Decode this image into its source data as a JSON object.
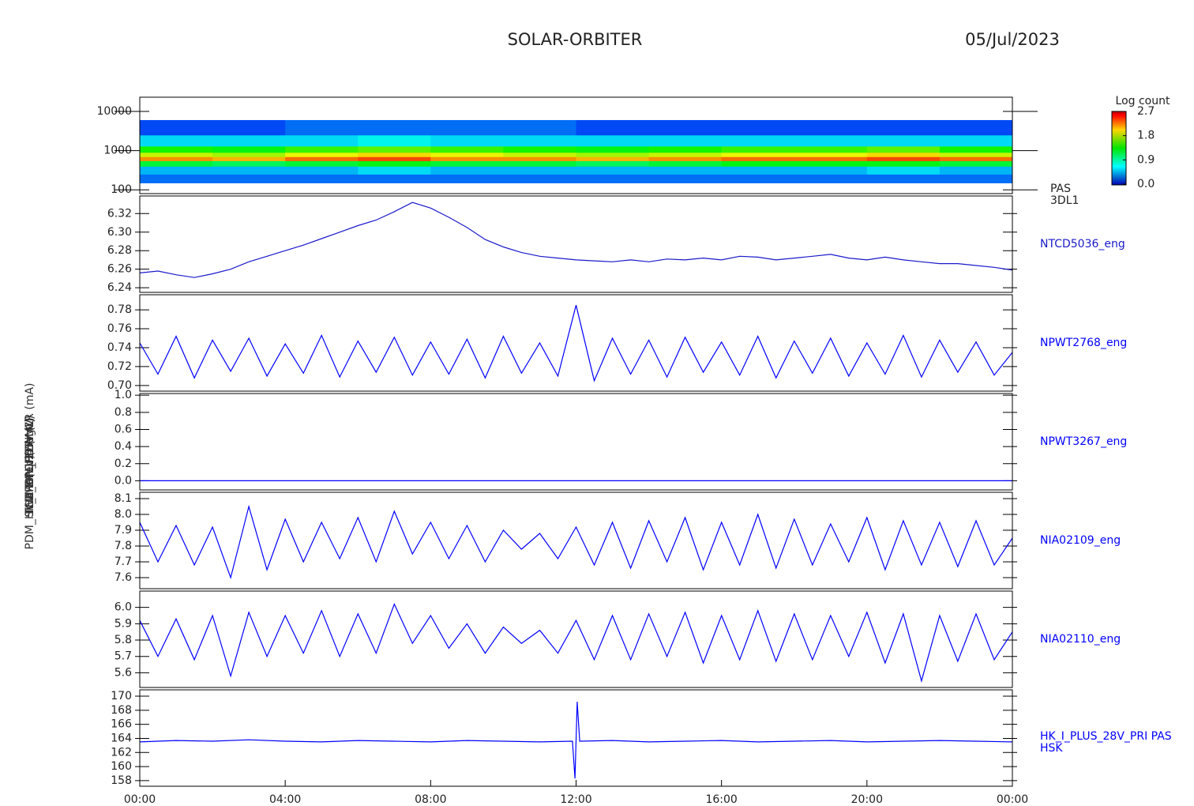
{
  "chart_data": [
    {
      "type": "heatmap",
      "title": "SOLAR-ORBITER",
      "date": "05/Jul/2023",
      "y_label": "(eV)",
      "right_label": [
        "PAS",
        "3DL1"
      ],
      "log_y": true,
      "xlim": [
        0,
        24
      ],
      "ylim": [
        80,
        23000
      ],
      "yticks": [
        100,
        1000,
        10000
      ],
      "x_bins": [
        0,
        2,
        4,
        6,
        8,
        10,
        12,
        14,
        16,
        18,
        20,
        22,
        24
      ],
      "y_bins": [
        150,
        250,
        400,
        550,
        700,
        900,
        1300,
        2500,
        6000
      ],
      "z": [
        [
          0.3,
          0.5,
          1.2,
          2.3,
          1.9,
          1.4,
          0.6,
          0.2
        ],
        [
          0.3,
          0.5,
          1.1,
          2.2,
          1.8,
          1.3,
          0.6,
          0.2
        ],
        [
          0.3,
          0.5,
          1.2,
          2.4,
          2.0,
          1.5,
          0.6,
          0.3
        ],
        [
          0.3,
          0.6,
          1.3,
          2.5,
          2.1,
          1.6,
          0.7,
          0.3
        ],
        [
          0.3,
          0.5,
          1.2,
          2.3,
          2.0,
          1.5,
          0.6,
          0.3
        ],
        [
          0.3,
          0.5,
          1.2,
          2.3,
          1.9,
          1.4,
          0.6,
          0.3
        ],
        [
          0.3,
          0.5,
          1.1,
          2.2,
          1.8,
          1.3,
          0.6,
          0.2
        ],
        [
          0.3,
          0.5,
          1.2,
          2.3,
          1.9,
          1.4,
          0.6,
          0.2
        ],
        [
          0.3,
          0.5,
          1.3,
          2.4,
          2.0,
          1.5,
          0.6,
          0.2
        ],
        [
          0.3,
          0.5,
          1.3,
          2.4,
          2.0,
          1.5,
          0.6,
          0.2
        ],
        [
          0.3,
          0.6,
          1.3,
          2.5,
          2.1,
          1.6,
          0.6,
          0.2
        ],
        [
          0.3,
          0.5,
          1.2,
          2.4,
          1.9,
          1.4,
          0.6,
          0.2
        ]
      ],
      "colorbar_title": "Log count",
      "zlim": [
        0,
        2.7
      ],
      "zticks": [
        {
          "value": 0,
          "label": "0.0"
        },
        0.9,
        1.8,
        2.7
      ]
    },
    {
      "type": "line",
      "y_label": "TCD Temp (DegC)",
      "right_label": [
        "NTCD5036_eng"
      ],
      "color": "#1a1acc",
      "xlim": [
        0,
        24
      ],
      "ylim": [
        6.235,
        6.339
      ],
      "yticks": [
        6.24,
        6.26,
        6.28,
        {
          "value": 6.3,
          "label": "6.30"
        },
        6.32
      ],
      "x": [
        0,
        0.5,
        1,
        1.5,
        2,
        2.5,
        3,
        3.5,
        4,
        4.5,
        5,
        5.5,
        6,
        6.5,
        7,
        7.5,
        8,
        8.5,
        9,
        9.5,
        10,
        10.5,
        11,
        11.5,
        12,
        12.5,
        13,
        13.5,
        14,
        14.5,
        15,
        15.5,
        16,
        16.5,
        17,
        17.5,
        18,
        18.5,
        19,
        19.5,
        20,
        20.5,
        21,
        21.5,
        22,
        22.5,
        23,
        23.5,
        24
      ],
      "values": [
        6.256,
        6.258,
        6.254,
        6.251,
        6.255,
        6.26,
        6.268,
        6.274,
        6.28,
        6.286,
        6.293,
        6.3,
        6.307,
        6.313,
        6.322,
        6.332,
        6.326,
        6.316,
        6.305,
        6.292,
        6.284,
        6.278,
        6.274,
        6.272,
        6.27,
        6.269,
        6.268,
        6.27,
        6.268,
        6.271,
        6.27,
        6.272,
        6.27,
        6.274,
        6.273,
        6.27,
        6.272,
        6.274,
        6.276,
        6.272,
        6.27,
        6.273,
        6.27,
        6.268,
        6.266,
        6.266,
        6.264,
        6.262,
        6.259
      ]
    },
    {
      "type": "line",
      "y_label": "SWA_DPU 1.5V (V)",
      "right_label": [
        "NPWT2768_eng"
      ],
      "color": "#0000ff",
      "xlim": [
        0,
        24
      ],
      "ylim": [
        0.694,
        0.796
      ],
      "yticks": [
        {
          "value": 0.7,
          "label": "0.70"
        },
        0.72,
        0.74,
        0.76,
        0.78
      ],
      "x": [
        0,
        0.5,
        1,
        1.5,
        2,
        2.5,
        3,
        3.5,
        4,
        4.5,
        5,
        5.5,
        6,
        6.5,
        7,
        7.5,
        8,
        8.5,
        9,
        9.5,
        10,
        10.5,
        11,
        11.5,
        12,
        12.5,
        13,
        13.5,
        14,
        14.5,
        15,
        15.5,
        16,
        16.5,
        17,
        17.5,
        18,
        18.5,
        19,
        19.5,
        20,
        20.5,
        21,
        21.5,
        22,
        22.5,
        23,
        23.5,
        24
      ],
      "values": [
        0.745,
        0.712,
        0.752,
        0.708,
        0.748,
        0.715,
        0.75,
        0.71,
        0.744,
        0.713,
        0.753,
        0.709,
        0.747,
        0.714,
        0.751,
        0.711,
        0.746,
        0.712,
        0.749,
        0.708,
        0.752,
        0.713,
        0.745,
        0.71,
        0.785,
        0.705,
        0.75,
        0.712,
        0.748,
        0.709,
        0.751,
        0.714,
        0.746,
        0.711,
        0.752,
        0.708,
        0.747,
        0.713,
        0.75,
        0.71,
        0.745,
        0.712,
        0.753,
        0.709,
        0.748,
        0.714,
        0.746,
        0.711,
        0.735
      ]
    },
    {
      "type": "line",
      "y_label": "SWA_DPU 2.5V (V)",
      "right_label": [
        "NPWT3267_eng"
      ],
      "color": "#0000ff",
      "xlim": [
        0,
        24
      ],
      "ylim": [
        -0.107,
        1.02
      ],
      "yticks": [
        {
          "value": 0,
          "label": "0.0"
        },
        0.2,
        0.4,
        0.6,
        0.8,
        {
          "value": 1,
          "label": "1.0"
        }
      ],
      "x": [
        0,
        1,
        2,
        3,
        4,
        5,
        6,
        7,
        8,
        9,
        10,
        11,
        12,
        13,
        14,
        15,
        16,
        17,
        18,
        19,
        20,
        21,
        22,
        23,
        24
      ],
      "values": [
        0,
        0,
        0,
        0,
        0,
        0,
        0,
        0,
        0,
        0,
        0,
        0,
        0,
        0,
        0,
        0,
        0,
        0,
        0,
        0,
        0,
        0,
        0,
        0,
        0
      ]
    },
    {
      "type": "line",
      "y_label": "THERM CH4 (mV)",
      "right_label": [
        "NIA02109_eng"
      ],
      "color": "#0000ff",
      "xlim": [
        0,
        24
      ],
      "ylim": [
        7.53,
        8.14
      ],
      "yticks": [
        7.6,
        7.7,
        7.8,
        7.9,
        {
          "value": 8.0,
          "label": "8.0"
        },
        8.1
      ],
      "x": [
        0,
        0.5,
        1,
        1.5,
        2,
        2.5,
        3,
        3.5,
        4,
        4.5,
        5,
        5.5,
        6,
        6.5,
        7,
        7.5,
        8,
        8.5,
        9,
        9.5,
        10,
        10.5,
        11,
        11.5,
        12,
        12.5,
        13,
        13.5,
        14,
        14.5,
        15,
        15.5,
        16,
        16.5,
        17,
        17.5,
        18,
        18.5,
        19,
        19.5,
        20,
        20.5,
        21,
        21.5,
        22,
        22.5,
        23,
        23.5,
        24
      ],
      "values": [
        7.95,
        7.7,
        7.93,
        7.68,
        7.92,
        7.6,
        8.05,
        7.65,
        7.97,
        7.7,
        7.95,
        7.72,
        7.98,
        7.7,
        8.02,
        7.75,
        7.95,
        7.72,
        7.93,
        7.7,
        7.9,
        7.78,
        7.88,
        7.72,
        7.92,
        7.68,
        7.95,
        7.66,
        7.96,
        7.7,
        7.98,
        7.65,
        7.95,
        7.68,
        8.0,
        7.66,
        7.97,
        7.68,
        7.94,
        7.7,
        7.98,
        7.65,
        7.96,
        7.68,
        7.95,
        7.67,
        7.96,
        7.68,
        7.85
      ]
    },
    {
      "type": "line",
      "y_label": "THERM CH5 (mV)",
      "right_label": [
        "NIA02110_eng"
      ],
      "color": "#0000ff",
      "xlim": [
        0,
        24
      ],
      "ylim": [
        5.51,
        6.1
      ],
      "yticks": [
        5.6,
        5.7,
        5.8,
        5.9,
        {
          "value": 6.0,
          "label": "6.0"
        }
      ],
      "x": [
        0,
        0.5,
        1,
        1.5,
        2,
        2.5,
        3,
        3.5,
        4,
        4.5,
        5,
        5.5,
        6,
        6.5,
        7,
        7.5,
        8,
        8.5,
        9,
        9.5,
        10,
        10.5,
        11,
        11.5,
        12,
        12.5,
        13,
        13.5,
        14,
        14.5,
        15,
        15.5,
        16,
        16.5,
        17,
        17.5,
        18,
        18.5,
        19,
        19.5,
        20,
        20.5,
        21,
        21.5,
        22,
        22.5,
        23,
        23.5,
        24
      ],
      "values": [
        5.92,
        5.7,
        5.93,
        5.68,
        5.95,
        5.58,
        5.97,
        5.7,
        5.95,
        5.72,
        5.98,
        5.7,
        5.96,
        5.72,
        6.02,
        5.78,
        5.95,
        5.75,
        5.9,
        5.72,
        5.88,
        5.78,
        5.86,
        5.72,
        5.92,
        5.68,
        5.95,
        5.68,
        5.96,
        5.7,
        5.97,
        5.66,
        5.95,
        5.68,
        5.98,
        5.67,
        5.96,
        5.68,
        5.95,
        5.7,
        5.97,
        5.66,
        5.96,
        5.55,
        5.95,
        5.67,
        5.96,
        5.68,
        5.85
      ]
    },
    {
      "type": "line",
      "y_label": "PDM_HK_IMON_PDRIMLR (mA)",
      "right_label": [
        "HK_I_PLUS_28V_PRI PAS",
        "HSK"
      ],
      "color": "#0000ff",
      "xlim": [
        0,
        24
      ],
      "ylim": [
        157.2,
        170.9
      ],
      "yticks": [
        158,
        160,
        162,
        164,
        166,
        168,
        170
      ],
      "xticks": [
        {
          "value": 0,
          "label": "00:00"
        },
        {
          "value": 4,
          "label": "04:00"
        },
        {
          "value": 8,
          "label": "08:00"
        },
        {
          "value": 12,
          "label": "12:00"
        },
        {
          "value": 16,
          "label": "16:00"
        },
        {
          "value": 20,
          "label": "20:00"
        },
        {
          "value": 24,
          "label": "00:00"
        }
      ],
      "x": [
        0,
        1,
        2,
        3,
        4,
        5,
        6,
        7,
        8,
        9,
        10,
        11,
        11.9,
        11.97,
        12.03,
        12.1,
        13,
        14,
        15,
        16,
        17,
        18,
        19,
        20,
        21,
        22,
        23,
        24
      ],
      "values": [
        163.5,
        163.7,
        163.6,
        163.8,
        163.6,
        163.5,
        163.7,
        163.6,
        163.5,
        163.7,
        163.6,
        163.5,
        163.6,
        158.3,
        169.2,
        163.6,
        163.7,
        163.5,
        163.6,
        163.7,
        163.5,
        163.6,
        163.7,
        163.5,
        163.6,
        163.7,
        163.6,
        163.5
      ]
    }
  ]
}
